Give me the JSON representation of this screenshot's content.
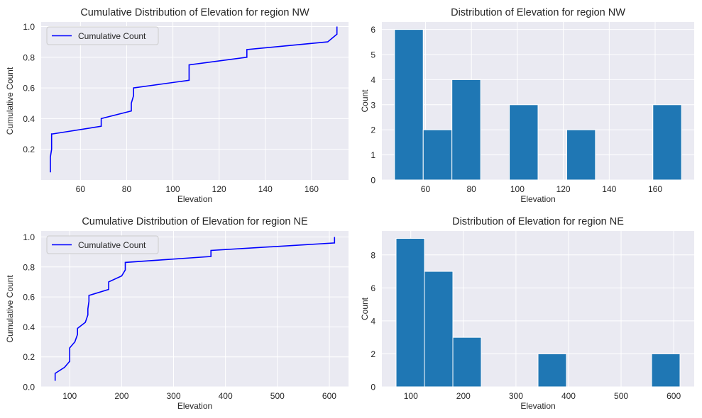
{
  "colors": {
    "panel_bg": "#eaeaf2",
    "grid": "#ffffff",
    "line": "#0000ff",
    "bar": "#1f77b4"
  },
  "chart_data": [
    {
      "type": "line",
      "title": "Cumulative Distribution of Elevation for region NW",
      "xlabel": "Elevation",
      "ylabel": "Cumulative Count",
      "xlim": [
        43,
        176
      ],
      "ylim": [
        0,
        1.03
      ],
      "xticks": [
        60,
        80,
        100,
        120,
        140,
        160
      ],
      "yticks": [
        0.2,
        0.4,
        0.6,
        0.8,
        1.0
      ],
      "legend": {
        "label": "Cumulative Count",
        "position": "top-left"
      },
      "series": [
        {
          "x": [
            47,
            47,
            47.5,
            47.5,
            48,
            69,
            69,
            82,
            82,
            83,
            83,
            107,
            107,
            132,
            132,
            167,
            171,
            171
          ],
          "y": [
            0.05,
            0.15,
            0.2,
            0.3,
            0.3,
            0.35,
            0.4,
            0.45,
            0.5,
            0.55,
            0.6,
            0.65,
            0.75,
            0.8,
            0.85,
            0.9,
            0.95,
            1.0
          ]
        }
      ]
    },
    {
      "type": "bar",
      "title": "Distribution of Elevation for region NW",
      "xlabel": "Elevation",
      "ylabel": "Count",
      "xlim": [
        41,
        177
      ],
      "ylim": [
        0,
        6.3
      ],
      "xticks": [
        60,
        80,
        100,
        120,
        140,
        160
      ],
      "yticks": [
        0,
        1,
        2,
        3,
        4,
        5,
        6
      ],
      "bins": [
        [
          46.5,
          59.0
        ],
        [
          59.0,
          71.5
        ],
        [
          71.5,
          84.0
        ],
        [
          84.0,
          96.5
        ],
        [
          96.5,
          109.0
        ],
        [
          109.0,
          121.5
        ],
        [
          121.5,
          134.0
        ],
        [
          134.0,
          146.5
        ],
        [
          146.5,
          159.0
        ],
        [
          159.0,
          171.5
        ]
      ],
      "values": [
        6,
        2,
        4,
        0,
        3,
        0,
        2,
        0,
        0,
        3
      ]
    },
    {
      "type": "line",
      "title": "Cumulative Distribution of Elevation for region NE",
      "xlabel": "Elevation",
      "ylabel": "Cumulative Count",
      "xlim": [
        45,
        637
      ],
      "ylim": [
        0,
        1.04
      ],
      "xticks": [
        100,
        200,
        300,
        400,
        500,
        600
      ],
      "yticks": [
        0.0,
        0.2,
        0.4,
        0.6,
        0.8,
        1.0
      ],
      "legend": {
        "label": "Cumulative Count",
        "position": "top-left"
      },
      "series": [
        {
          "x": [
            72,
            72,
            90,
            100,
            100,
            110,
            115,
            115,
            130,
            135,
            135,
            137,
            137,
            175,
            175,
            200,
            207,
            207,
            372,
            372,
            610,
            610
          ],
          "y": [
            0.04,
            0.09,
            0.13,
            0.17,
            0.26,
            0.3,
            0.35,
            0.39,
            0.43,
            0.48,
            0.52,
            0.57,
            0.61,
            0.65,
            0.7,
            0.74,
            0.78,
            0.83,
            0.87,
            0.91,
            0.96,
            1.0
          ]
        }
      ]
    },
    {
      "type": "bar",
      "title": "Distribution of Elevation for region NE",
      "xlabel": "Elevation",
      "ylabel": "Count",
      "xlim": [
        45,
        639
      ],
      "ylim": [
        0,
        9.45
      ],
      "xticks": [
        100,
        200,
        300,
        400,
        500,
        600
      ],
      "yticks": [
        0,
        2,
        4,
        6,
        8
      ],
      "bins": [
        [
          72,
          126
        ],
        [
          126,
          180
        ],
        [
          180,
          234
        ],
        [
          234,
          288
        ],
        [
          288,
          342
        ],
        [
          342,
          396
        ],
        [
          396,
          450
        ],
        [
          450,
          504
        ],
        [
          504,
          558
        ],
        [
          558,
          612
        ]
      ],
      "values": [
        9,
        7,
        3,
        0,
        0,
        2,
        0,
        0,
        0,
        2
      ]
    }
  ]
}
